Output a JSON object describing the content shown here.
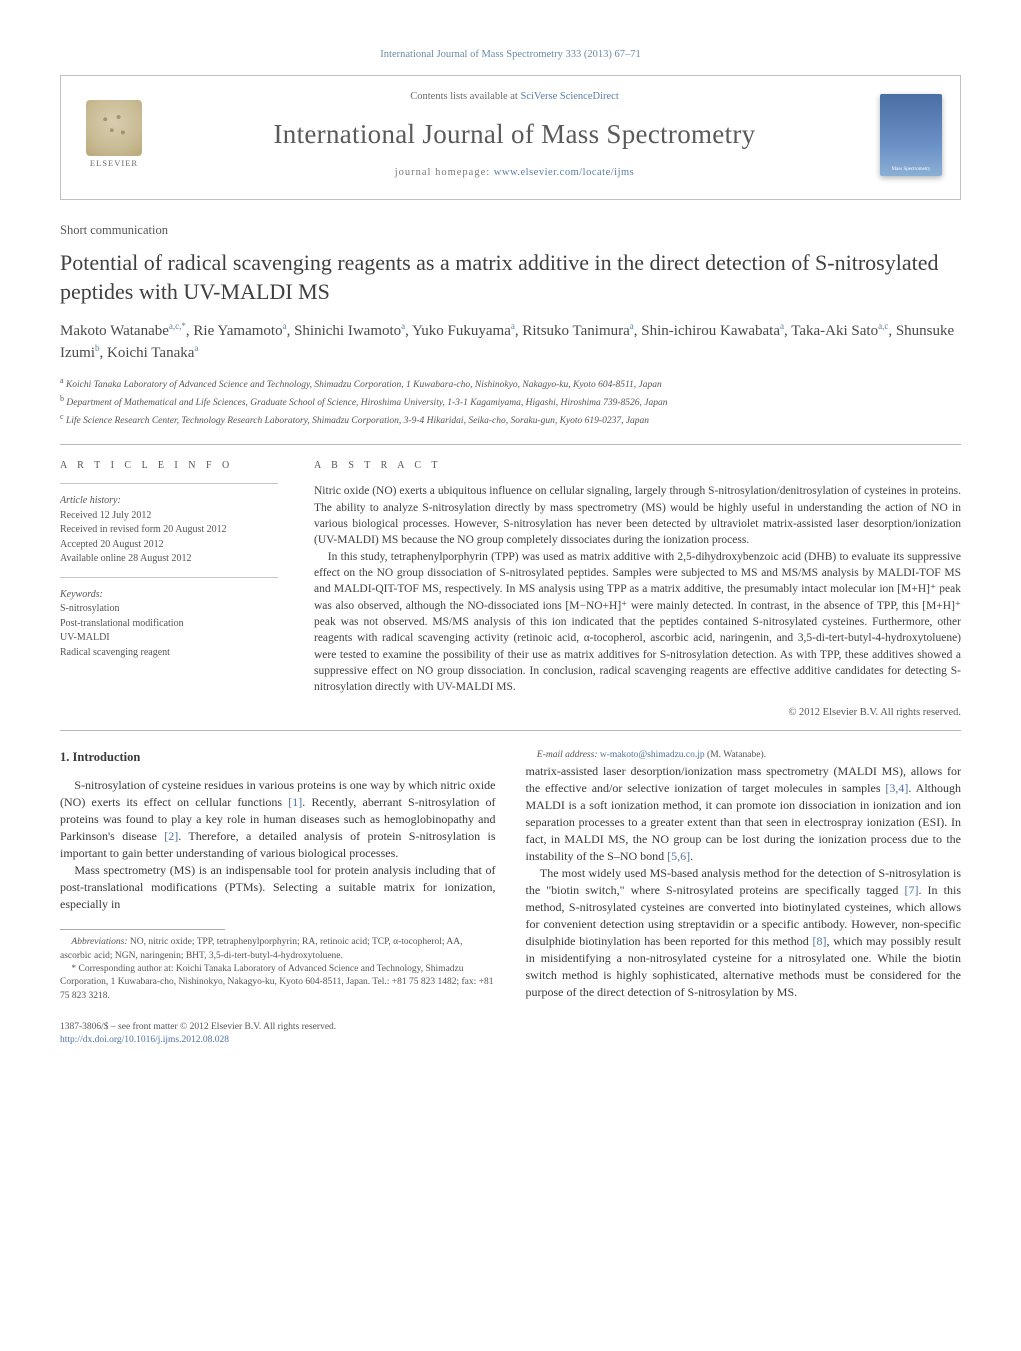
{
  "journal_ref": "International Journal of Mass Spectrometry 333 (2013) 67–71",
  "header": {
    "contents_prefix": "Contents lists available at ",
    "contents_link": "SciVerse ScienceDirect",
    "journal_title": "International Journal of Mass Spectrometry",
    "homepage_prefix": "journal homepage: ",
    "homepage_url": "www.elsevier.com/locate/ijms",
    "publisher": "ELSEVIER",
    "cover_label": "Mass Spectrometry"
  },
  "article_type": "Short communication",
  "title": "Potential of radical scavenging reagents as a matrix additive in the direct detection of S-nitrosylated peptides with UV-MALDI MS",
  "authors_html": "Makoto Watanabe<sup>a,c,*</sup>, Rie Yamamoto<sup>a</sup>, Shinichi Iwamoto<sup>a</sup>, Yuko Fukuyama<sup>a</sup>, Ritsuko Tanimura<sup>a</sup>, Shin-ichirou Kawabata<sup>a</sup>, Taka-Aki Sato<sup>a,c</sup>, Shunsuke Izumi<sup>b</sup>, Koichi Tanaka<sup>a</sup>",
  "affiliations": [
    "a Koichi Tanaka Laboratory of Advanced Science and Technology, Shimadzu Corporation, 1 Kuwabara-cho, Nishinokyo, Nakagyo-ku, Kyoto 604-8511, Japan",
    "b Department of Mathematical and Life Sciences, Graduate School of Science, Hiroshima University, 1-3-1 Kagamiyama, Higashi, Hiroshima 739-8526, Japan",
    "c Life Science Research Center, Technology Research Laboratory, Shimadzu Corporation, 3-9-4 Hikaridai, Seika-cho, Soraku-gun, Kyoto 619-0237, Japan"
  ],
  "info": {
    "label": "A R T I C L E   I N F O",
    "history_head": "Article history:",
    "history": [
      "Received 12 July 2012",
      "Received in revised form 20 August 2012",
      "Accepted 20 August 2012",
      "Available online 28 August 2012"
    ],
    "keywords_head": "Keywords:",
    "keywords": [
      "S-nitrosylation",
      "Post-translational modification",
      "UV-MALDI",
      "Radical scavenging reagent"
    ]
  },
  "abstract": {
    "label": "A B S T R A C T",
    "paragraphs": [
      "Nitric oxide (NO) exerts a ubiquitous influence on cellular signaling, largely through S-nitrosylation/denitrosylation of cysteines in proteins. The ability to analyze S-nitrosylation directly by mass spectrometry (MS) would be highly useful in understanding the action of NO in various biological processes. However, S-nitrosylation has never been detected by ultraviolet matrix-assisted laser desorption/ionization (UV-MALDI) MS because the NO group completely dissociates during the ionization process.",
      "In this study, tetraphenylporphyrin (TPP) was used as matrix additive with 2,5-dihydroxybenzoic acid (DHB) to evaluate its suppressive effect on the NO group dissociation of S-nitrosylated peptides. Samples were subjected to MS and MS/MS analysis by MALDI-TOF MS and MALDI-QIT-TOF MS, respectively. In MS analysis using TPP as a matrix additive, the presumably intact molecular ion [M+H]⁺ peak was also observed, although the NO-dissociated ions [M−NO+H]⁺ were mainly detected. In contrast, in the absence of TPP, this [M+H]⁺ peak was not observed. MS/MS analysis of this ion indicated that the peptides contained S-nitrosylated cysteines. Furthermore, other reagents with radical scavenging activity (retinoic acid, α-tocopherol, ascorbic acid, naringenin, and 3,5-di-tert-butyl-4-hydroxytoluene) were tested to examine the possibility of their use as matrix additives for S-nitrosylation detection. As with TPP, these additives showed a suppressive effect on NO group dissociation. In conclusion, radical scavenging reagents are effective additive candidates for detecting S-nitrosylation directly with UV-MALDI MS."
    ],
    "copyright": "© 2012 Elsevier B.V. All rights reserved."
  },
  "intro": {
    "heading": "1.  Introduction",
    "p1": "S-nitrosylation of cysteine residues in various proteins is one way by which nitric oxide (NO) exerts its effect on cellular functions [1]. Recently, aberrant S-nitrosylation of proteins was found to play a key role in human diseases such as hemoglobinopathy and Parkinson's disease [2]. Therefore, a detailed analysis of protein S-nitrosylation is important to gain better understanding of various biological processes.",
    "p2": "Mass spectrometry (MS) is an indispensable tool for protein analysis including that of post-translational modifications (PTMs). Selecting a suitable matrix for ionization, especially in",
    "p3": "matrix-assisted laser desorption/ionization mass spectrometry (MALDI MS), allows for the effective and/or selective ionization of target molecules in samples [3,4]. Although MALDI is a soft ionization method, it can promote ion dissociation in ionization and ion separation processes to a greater extent than that seen in electrospray ionization (ESI). In fact, in MALDI MS, the NO group can be lost during the ionization process due to the instability of the S–NO bond [5,6].",
    "p4": "The most widely used MS-based analysis method for the detection of S-nitrosylation is the \"biotin switch,\" where S-nitrosylated proteins are specifically tagged [7]. In this method, S-nitrosylated cysteines are converted into biotinylated cysteines, which allows for convenient detection using streptavidin or a specific antibody. However, non-specific disulphide biotinylation has been reported for this method [8], which may possibly result in misidentifying a non-nitrosylated cysteine for a nitrosylated one. While the biotin switch method is highly sophisticated, alternative methods must be considered for the purpose of the direct detection of S-nitrosylation by MS."
  },
  "footnotes": {
    "abbrev_label": "Abbreviations:",
    "abbrev": " NO, nitric oxide; TPP, tetraphenylporphyrin; RA, retinoic acid; TCP, α-tocopherol; AA, ascorbic acid; NGN, naringenin; BHT, 3,5-di-tert-butyl-4-hydroxytoluene.",
    "corr": "* Corresponding author at: Koichi Tanaka Laboratory of Advanced Science and Technology, Shimadzu Corporation, 1 Kuwabara-cho, Nishinokyo, Nakagyo-ku, Kyoto 604-8511, Japan. Tel.: +81 75 823 1482; fax: +81 75 823 3218.",
    "email_label": "E-mail address:",
    "email": "w-makoto@shimadzu.co.jp",
    "email_tail": " (M. Watanabe)."
  },
  "bottom": {
    "left1": "1387-3806/$ – see front matter © 2012 Elsevier B.V. All rights reserved.",
    "doi": "http://dx.doi.org/10.1016/j.ijms.2012.08.028"
  },
  "colors": {
    "link": "#4f73a0",
    "text": "#3a3a3a",
    "rule": "#b8b8b8"
  },
  "typography": {
    "body_pt": 12,
    "title_pt": 22,
    "journal_pt": 27,
    "small_pt": 10
  }
}
